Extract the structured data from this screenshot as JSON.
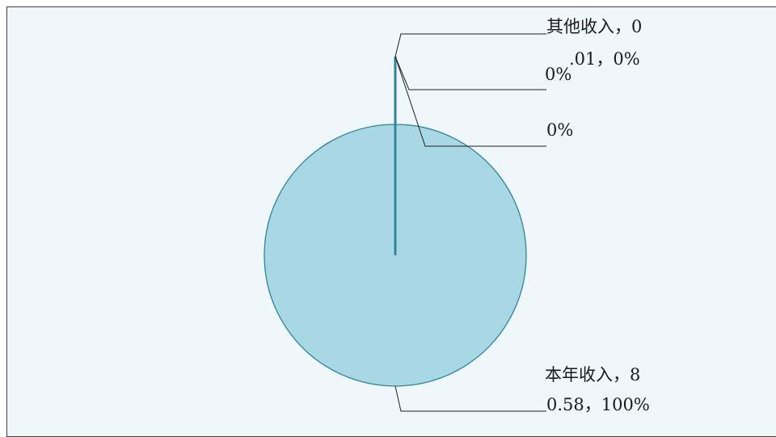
{
  "chart_data": {
    "type": "pie",
    "title": "",
    "slices": [
      {
        "name": "本年收入",
        "value": 80.58,
        "percent": "100%",
        "label_line1": "本年收入，8",
        "label_line2": "0.58，100%"
      },
      {
        "name": "其他收入",
        "value": 0.01,
        "percent": "0%",
        "label_line1": "其他收入，0",
        "label_line2": ".01，0%"
      },
      {
        "name": "",
        "value": 0,
        "percent": "0%",
        "label_line1": "0%",
        "label_line2": ""
      },
      {
        "name": "",
        "value": 0,
        "percent": "0%",
        "label_line1": "0%",
        "label_line2": ""
      }
    ],
    "legend": "none",
    "colors": {
      "fill": "#a8d8e3",
      "stroke": "#31849b",
      "background": "#f0f7fa"
    }
  }
}
